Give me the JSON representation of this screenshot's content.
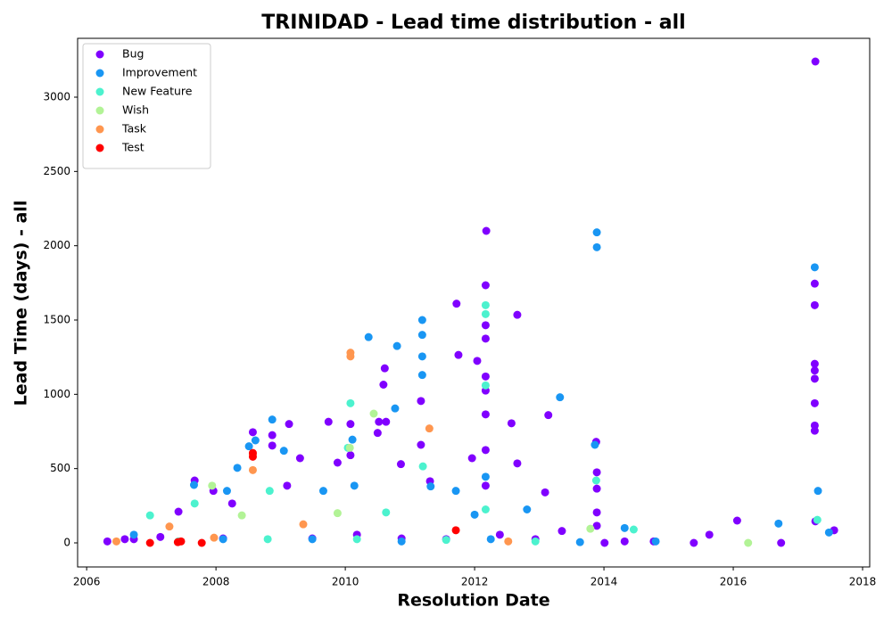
{
  "chart_data": {
    "type": "scatter",
    "title": "TRINIDAD - Lead time distribution - all",
    "x_label": "Resolution Date",
    "y_label": "Lead Time (days) - all",
    "xlim": [
      2005.86,
      2018.11
    ],
    "ylim": [
      -162,
      3396
    ],
    "xticks": [
      2006,
      2008,
      2010,
      2012,
      2014,
      2016,
      2018
    ],
    "yticks": [
      0,
      500,
      1000,
      1500,
      2000,
      2500,
      3000
    ],
    "legend": "upper left",
    "series": [
      {
        "name": "Bug",
        "color": "#8000ff",
        "x": [
          2017.27,
          2012.18,
          2012.17,
          2017.26,
          2017.26,
          2011.72,
          2012.66,
          2012.17,
          2012.17,
          2011.75,
          2012.04,
          2012.17,
          2017.26,
          2017.26,
          2017.26,
          2017.26,
          2017.26,
          2017.26,
          2012.17,
          2012.17,
          2010.61,
          2010.59,
          2011.17,
          2013.14,
          2009.74,
          2010.52,
          2010.63,
          2010.5,
          2009.13,
          2010.08,
          2012.57,
          2008.57,
          2008.87,
          2008.87,
          2011.17,
          2012.17,
          2010.08,
          2009.3,
          2011.96,
          2013.88,
          2013.89,
          2013.89,
          2013.89,
          2013.89,
          2007.67,
          2007.96,
          2009.88,
          2010.86,
          2012.66,
          2012.17,
          2009.1,
          2013.09,
          2011.31,
          2007.42,
          2008.25,
          2016.06,
          2017.27,
          2015.63,
          2015.39,
          2016.74,
          2017.56,
          2014.01,
          2014.77,
          2013.35,
          2006.73,
          2006.32,
          2010.18,
          2010.87,
          2011.56,
          2012.39,
          2012.94,
          2014.32,
          2009.49,
          2008.11,
          2007.14,
          2006.59
        ],
        "values": [
          3240,
          2100,
          1734,
          1745,
          1600,
          1610,
          1535,
          1465,
          1375,
          1265,
          1225,
          1120,
          1205,
          1160,
          1105,
          940,
          790,
          755,
          1025,
          865,
          1175,
          1065,
          955,
          860,
          815,
          815,
          815,
          740,
          800,
          800,
          805,
          745,
          725,
          655,
          660,
          625,
          590,
          570,
          570,
          680,
          475,
          365,
          205,
          115,
          420,
          350,
          540,
          530,
          535,
          385,
          385,
          340,
          415,
          210,
          265,
          150,
          145,
          55,
          0,
          0,
          85,
          0,
          10,
          80,
          25,
          10,
          55,
          30,
          25,
          55,
          25,
          10,
          30,
          30,
          40,
          25
        ]
      },
      {
        "name": "Improvement",
        "color": "#1996f3",
        "x": [
          2013.89,
          2013.89,
          2017.26,
          2011.19,
          2011.19,
          2011.19,
          2011.19,
          2010.36,
          2010.8,
          2013.32,
          2010.77,
          2008.87,
          2010.11,
          2013.86,
          2008.61,
          2008.51,
          2009.05,
          2008.33,
          2010.14,
          2011.32,
          2007.66,
          2008.17,
          2011.71,
          2009.66,
          2017.31,
          2012.17,
          2012.81,
          2012.0,
          2016.7,
          2014.32,
          2006.73,
          2008.11,
          2009.49,
          2010.87,
          2012.25,
          2013.63,
          2014.8,
          2017.48
        ],
        "values": [
          2090,
          1990,
          1855,
          1500,
          1400,
          1255,
          1130,
          1385,
          1325,
          980,
          905,
          830,
          695,
          660,
          690,
          650,
          620,
          505,
          385,
          380,
          390,
          350,
          350,
          350,
          350,
          445,
          225,
          190,
          130,
          100,
          55,
          25,
          25,
          10,
          25,
          5,
          10,
          70
        ]
      },
      {
        "name": "New Feature",
        "color": "#4cf2ce",
        "x": [
          2012.17,
          2012.17,
          2012.17,
          2010.08,
          2011.2,
          2013.88,
          2010.04,
          2007.67,
          2008.83,
          2010.63,
          2012.17,
          2006.98,
          2017.3,
          2014.46,
          2007.42,
          2008.8,
          2010.18,
          2011.56,
          2012.94
        ],
        "values": [
          1600,
          1540,
          1060,
          940,
          515,
          420,
          640,
          265,
          350,
          205,
          225,
          185,
          155,
          90,
          10,
          25,
          25,
          20,
          10
        ]
      },
      {
        "name": "Wish",
        "color": "#b2f396",
        "x": [
          2010.44,
          2010.07,
          2008.4,
          2007.94,
          2013.79,
          2016.23,
          2009.88
        ],
        "values": [
          870,
          640,
          185,
          385,
          95,
          0,
          200
        ]
      },
      {
        "name": "Task",
        "color": "#ff964f",
        "x": [
          2010.08,
          2010.08,
          2011.3,
          2008.57,
          2008.57,
          2007.28,
          2009.35,
          2012.52,
          2006.46,
          2007.97
        ],
        "values": [
          1280,
          1255,
          770,
          490,
          595,
          110,
          125,
          10,
          10,
          35
        ]
      },
      {
        "name": "Test",
        "color": "#ff0000",
        "x": [
          2008.57,
          2008.57,
          2011.71,
          2006.98,
          2007.41,
          2007.78,
          2007.46
        ],
        "values": [
          580,
          605,
          85,
          0,
          5,
          0,
          10
        ]
      }
    ]
  }
}
